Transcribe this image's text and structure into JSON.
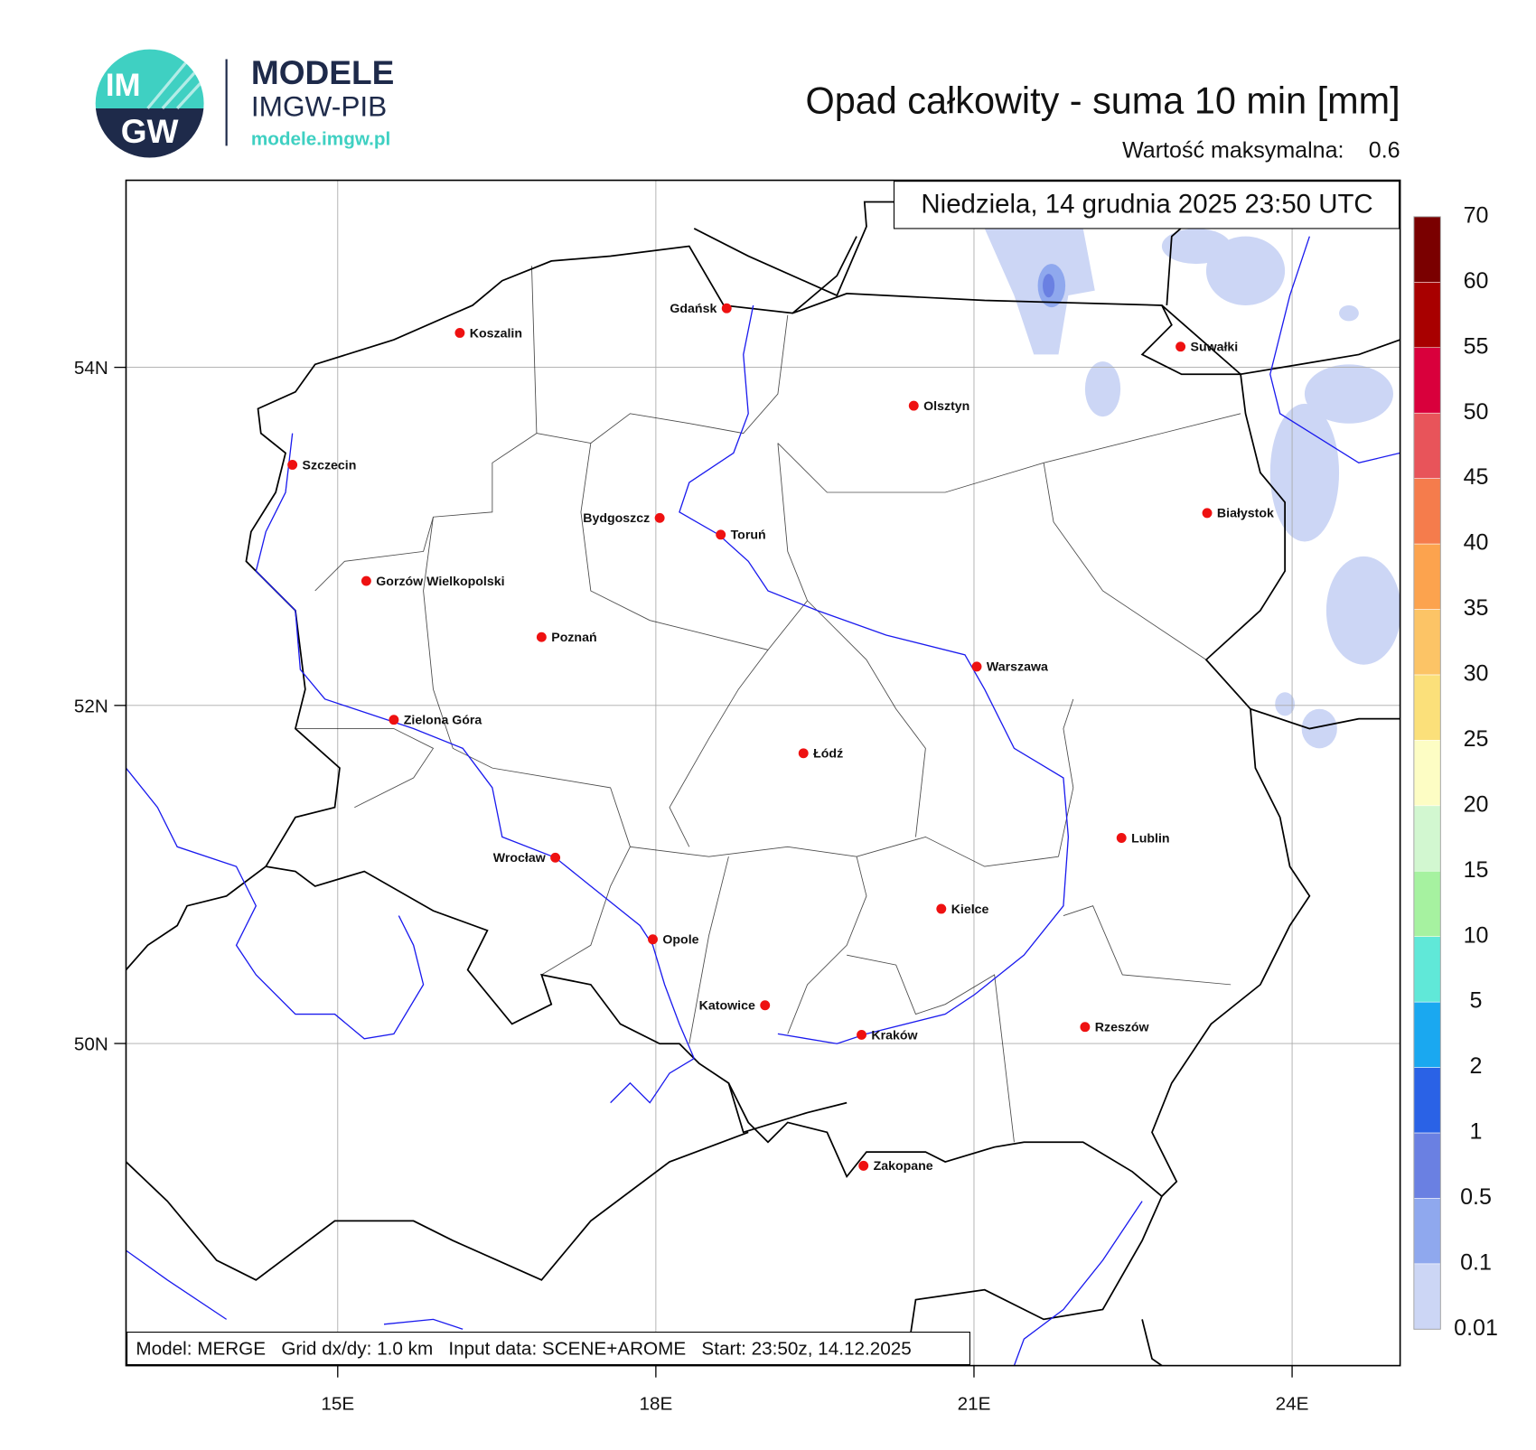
{
  "header": {
    "logo_top": "IM",
    "logo_bottom": "GW",
    "brand": "MODELE",
    "brand_sub": "IMGW-PIB",
    "url": "modele.imgw.pl",
    "title": "Opad całkowity - suma 10 min [mm]",
    "max_label": "Wartość maksymalna:",
    "max_value": 0.6
  },
  "map": {
    "date": "Niedziela, 14 grudnia 2025 23:50 UTC",
    "xticks": [
      {
        "value": 15,
        "label": "15E"
      },
      {
        "value": 18,
        "label": "18E"
      },
      {
        "value": 21,
        "label": "21E"
      },
      {
        "value": 24,
        "label": "24E"
      }
    ],
    "yticks": [
      {
        "value": 54,
        "label": "54N"
      },
      {
        "value": 52,
        "label": "52N"
      },
      {
        "value": 50,
        "label": "50N"
      }
    ],
    "grid": true,
    "cities": [
      "Gdańsk",
      "Koszalin",
      "Szczecin",
      "Suwałki",
      "Olsztyn",
      "Białystok",
      "Bydgoszcz",
      "Toruń",
      "Gorzów Wielkopolski",
      "Poznań",
      "Warszawa",
      "Zielona Góra",
      "Łódź",
      "Lublin",
      "Wrocław",
      "Kielce",
      "Opole",
      "Katowice",
      "Rzeszów",
      "Kraków",
      "Zakopane"
    ],
    "footer": "Model: MERGE   Grid dx/dy: 1.0 km   Input data: SCENE+AROME   Start: 23:50z, 14.12.2025"
  },
  "colorbar": {
    "levels": [
      0.01,
      0.1,
      0.5,
      1,
      2,
      5,
      10,
      15,
      20,
      25,
      30,
      35,
      40,
      45,
      50,
      55,
      60,
      70
    ],
    "colors": [
      "#ccd6f5",
      "#8fa8ee",
      "#6a80e2",
      "#2a62e6",
      "#1aa8f0",
      "#60e8d8",
      "#a6f2a0",
      "#d2f7d0",
      "#fdfdc4",
      "#fbe07a",
      "#fcc466",
      "#fca34e",
      "#f57c4c",
      "#e8545a",
      "#d9003c",
      "#a80000",
      "#7a0000"
    ]
  }
}
